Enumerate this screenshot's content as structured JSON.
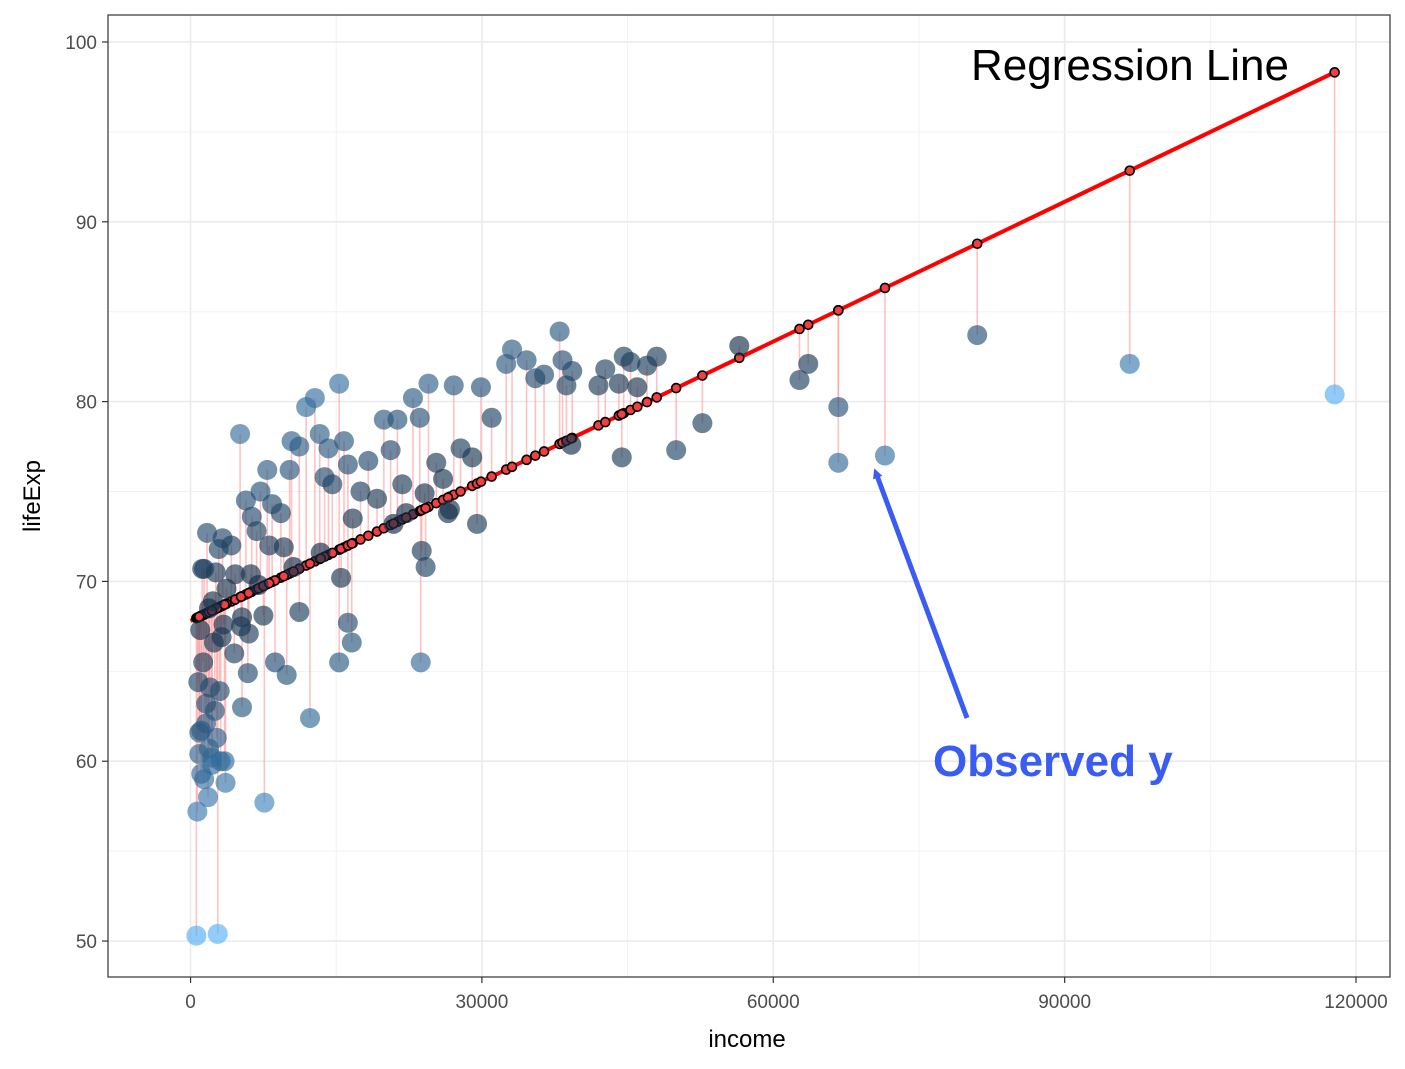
{
  "chart_data": {
    "type": "scatter",
    "title": "",
    "xlabel": "income",
    "ylabel": "lifeExp",
    "xlim": [
      -8500,
      123500
    ],
    "ylim": [
      48,
      101.5
    ],
    "x_ticks": [
      0,
      30000,
      60000,
      90000,
      120000
    ],
    "x_tick_labels": [
      "0",
      "30000",
      "60000",
      "90000",
      "120000"
    ],
    "y_ticks": [
      50,
      60,
      70,
      80,
      90,
      100
    ],
    "y_tick_labels": [
      "50",
      "60",
      "70",
      "80",
      "90",
      "100"
    ],
    "grid": true,
    "regression": {
      "intercept": 67.8,
      "slope": 0.000259,
      "color": "#ff0000",
      "label": "Regression Line"
    },
    "annotation": {
      "text": "Observed y",
      "color": "#3a5cf2",
      "points_to": [
        71500,
        77.0
      ]
    },
    "series": [
      {
        "points": [
          [
            600,
            50.3
          ],
          [
            2800,
            50.4
          ],
          [
            700,
            57.2
          ],
          [
            1800,
            58.0
          ],
          [
            3600,
            58.8
          ],
          [
            1400,
            59.0
          ],
          [
            900,
            60.4
          ],
          [
            2200,
            60.2
          ],
          [
            3100,
            60.0
          ],
          [
            1100,
            61.7
          ],
          [
            2500,
            62.8
          ],
          [
            1600,
            63.2
          ],
          [
            800,
            64.4
          ],
          [
            2000,
            64.1
          ],
          [
            3000,
            63.9
          ],
          [
            1300,
            65.5
          ],
          [
            4500,
            66.0
          ],
          [
            2400,
            66.6
          ],
          [
            1000,
            67.3
          ],
          [
            3400,
            67.6
          ],
          [
            1900,
            68.5
          ],
          [
            5300,
            68.0
          ],
          [
            1400,
            70.7
          ],
          [
            2600,
            70.5
          ],
          [
            1700,
            72.7
          ],
          [
            3300,
            72.4
          ],
          [
            4200,
            72.0
          ],
          [
            2900,
            71.8
          ],
          [
            5300,
            63.0
          ],
          [
            5900,
            64.9
          ],
          [
            7600,
            57.7
          ],
          [
            5100,
            78.2
          ],
          [
            5700,
            74.5
          ],
          [
            6300,
            73.6
          ],
          [
            6800,
            72.8
          ],
          [
            7200,
            75.0
          ],
          [
            7900,
            76.2
          ],
          [
            8400,
            74.3
          ],
          [
            9300,
            73.8
          ],
          [
            10400,
            77.8
          ],
          [
            10200,
            76.2
          ],
          [
            11200,
            77.5
          ],
          [
            11900,
            79.7
          ],
          [
            12800,
            80.2
          ],
          [
            13300,
            78.2
          ],
          [
            14200,
            77.4
          ],
          [
            13800,
            75.8
          ],
          [
            15300,
            81.0
          ],
          [
            15800,
            77.8
          ],
          [
            16200,
            76.5
          ],
          [
            16700,
            73.5
          ],
          [
            17500,
            75.0
          ],
          [
            18300,
            76.7
          ],
          [
            19200,
            74.6
          ],
          [
            19900,
            79.0
          ],
          [
            20600,
            77.3
          ],
          [
            21300,
            79.0
          ],
          [
            21800,
            75.4
          ],
          [
            22900,
            80.2
          ],
          [
            23600,
            79.1
          ],
          [
            24100,
            74.9
          ],
          [
            24500,
            81.0
          ],
          [
            25300,
            76.6
          ],
          [
            26000,
            75.7
          ],
          [
            26700,
            74.0
          ],
          [
            27100,
            80.9
          ],
          [
            27800,
            77.4
          ],
          [
            29000,
            76.9
          ],
          [
            29500,
            73.2
          ],
          [
            29900,
            80.8
          ],
          [
            31000,
            79.1
          ],
          [
            32500,
            82.1
          ],
          [
            33100,
            82.9
          ],
          [
            34600,
            82.3
          ],
          [
            35500,
            81.3
          ],
          [
            36400,
            81.5
          ],
          [
            38000,
            83.9
          ],
          [
            38300,
            82.3
          ],
          [
            39300,
            81.7
          ],
          [
            38700,
            80.9
          ],
          [
            39200,
            77.6
          ],
          [
            42000,
            80.9
          ],
          [
            42700,
            81.8
          ],
          [
            44100,
            81.0
          ],
          [
            44600,
            82.5
          ],
          [
            45300,
            82.2
          ],
          [
            46000,
            80.8
          ],
          [
            47000,
            82.0
          ],
          [
            48000,
            82.5
          ],
          [
            44400,
            76.9
          ],
          [
            50000,
            77.3
          ],
          [
            52700,
            78.8
          ],
          [
            56500,
            83.1
          ],
          [
            62700,
            81.2
          ],
          [
            63600,
            82.1
          ],
          [
            66700,
            79.7
          ],
          [
            66700,
            76.6
          ],
          [
            71500,
            77.0
          ],
          [
            81000,
            83.7
          ],
          [
            96700,
            82.1
          ],
          [
            117800,
            80.4
          ],
          [
            8700,
            65.5
          ],
          [
            9900,
            64.8
          ],
          [
            11200,
            68.3
          ],
          [
            12300,
            62.4
          ],
          [
            15300,
            65.5
          ],
          [
            15500,
            70.2
          ],
          [
            16200,
            67.7
          ],
          [
            16600,
            66.6
          ],
          [
            23700,
            65.5
          ],
          [
            23800,
            71.7
          ],
          [
            24200,
            70.8
          ],
          [
            26500,
            73.8
          ],
          [
            20900,
            73.2
          ],
          [
            22200,
            73.8
          ],
          [
            13400,
            71.6
          ],
          [
            14600,
            75.4
          ],
          [
            6200,
            70.4
          ],
          [
            7000,
            69.8
          ],
          [
            4600,
            70.4
          ],
          [
            5200,
            67.5
          ],
          [
            6000,
            67.1
          ],
          [
            7500,
            68.1
          ],
          [
            3700,
            69.6
          ],
          [
            8100,
            72.0
          ],
          [
            9600,
            71.9
          ],
          [
            10600,
            70.8
          ],
          [
            3200,
            66.9
          ],
          [
            2300,
            68.9
          ],
          [
            1200,
            70.7
          ],
          [
            2700,
            61.3
          ],
          [
            1600,
            62.1
          ],
          [
            1900,
            60.7
          ],
          [
            1100,
            59.3
          ],
          [
            2200,
            59.8
          ],
          [
            3500,
            60.0
          ],
          [
            900,
            61.6
          ]
        ]
      }
    ]
  }
}
